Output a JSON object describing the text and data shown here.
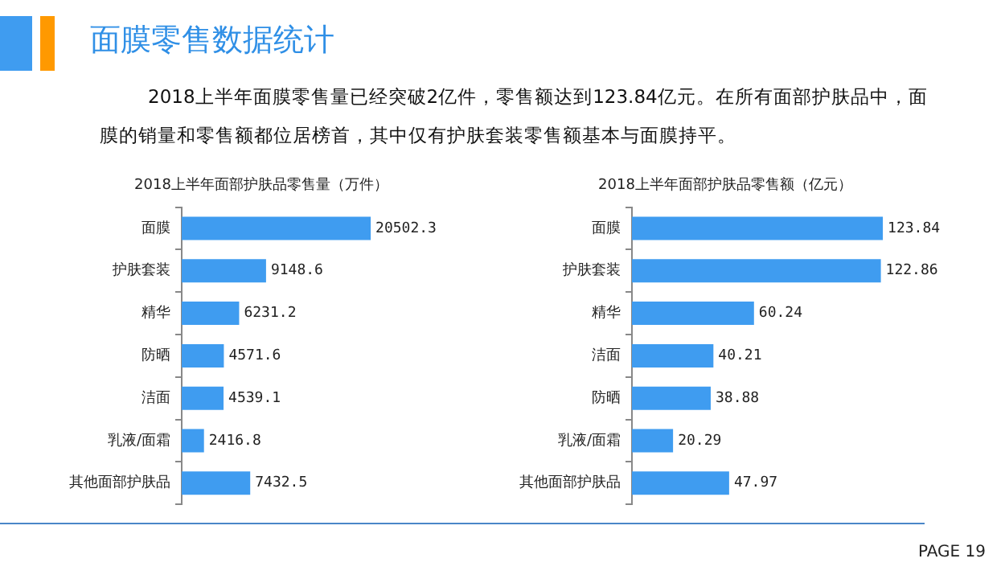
{
  "chart_data": [
    {
      "type": "other",
      "title": "面膜零售数据统计",
      "annotations": [
        "2018上半年面膜零售量已经突破2亿件，零售额达到123.84亿元。在所有面部护肤品中，面膜的销量和零售额都位居榜首，其中仅有护肤套装零售额基本与面膜持平。",
        "PAGE  19"
      ]
    },
    {
      "type": "bar",
      "orientation": "horizontal",
      "title": "2018上半年面部护肤品零售量（万件）",
      "categories": [
        "面膜",
        "护肤套装",
        "精华",
        "防晒",
        "洁面",
        "乳液/面霜",
        "其他面部护肤品"
      ],
      "values": [
        20502.3,
        9148.6,
        6231.2,
        4571.6,
        4539.1,
        2416.8,
        7432.5
      ],
      "color": "#3f9cf0",
      "data_labels": true
    },
    {
      "type": "bar",
      "orientation": "horizontal",
      "title": "2018上半年面部护肤品零售额（亿元）",
      "categories": [
        "面膜",
        "护肤套装",
        "精华",
        "洁面",
        "防晒",
        "乳液/面霜",
        "其他面部护肤品"
      ],
      "values": [
        123.84,
        122.86,
        60.24,
        40.21,
        38.88,
        20.29,
        47.97
      ],
      "color": "#3f9cf0",
      "data_labels": true
    }
  ]
}
